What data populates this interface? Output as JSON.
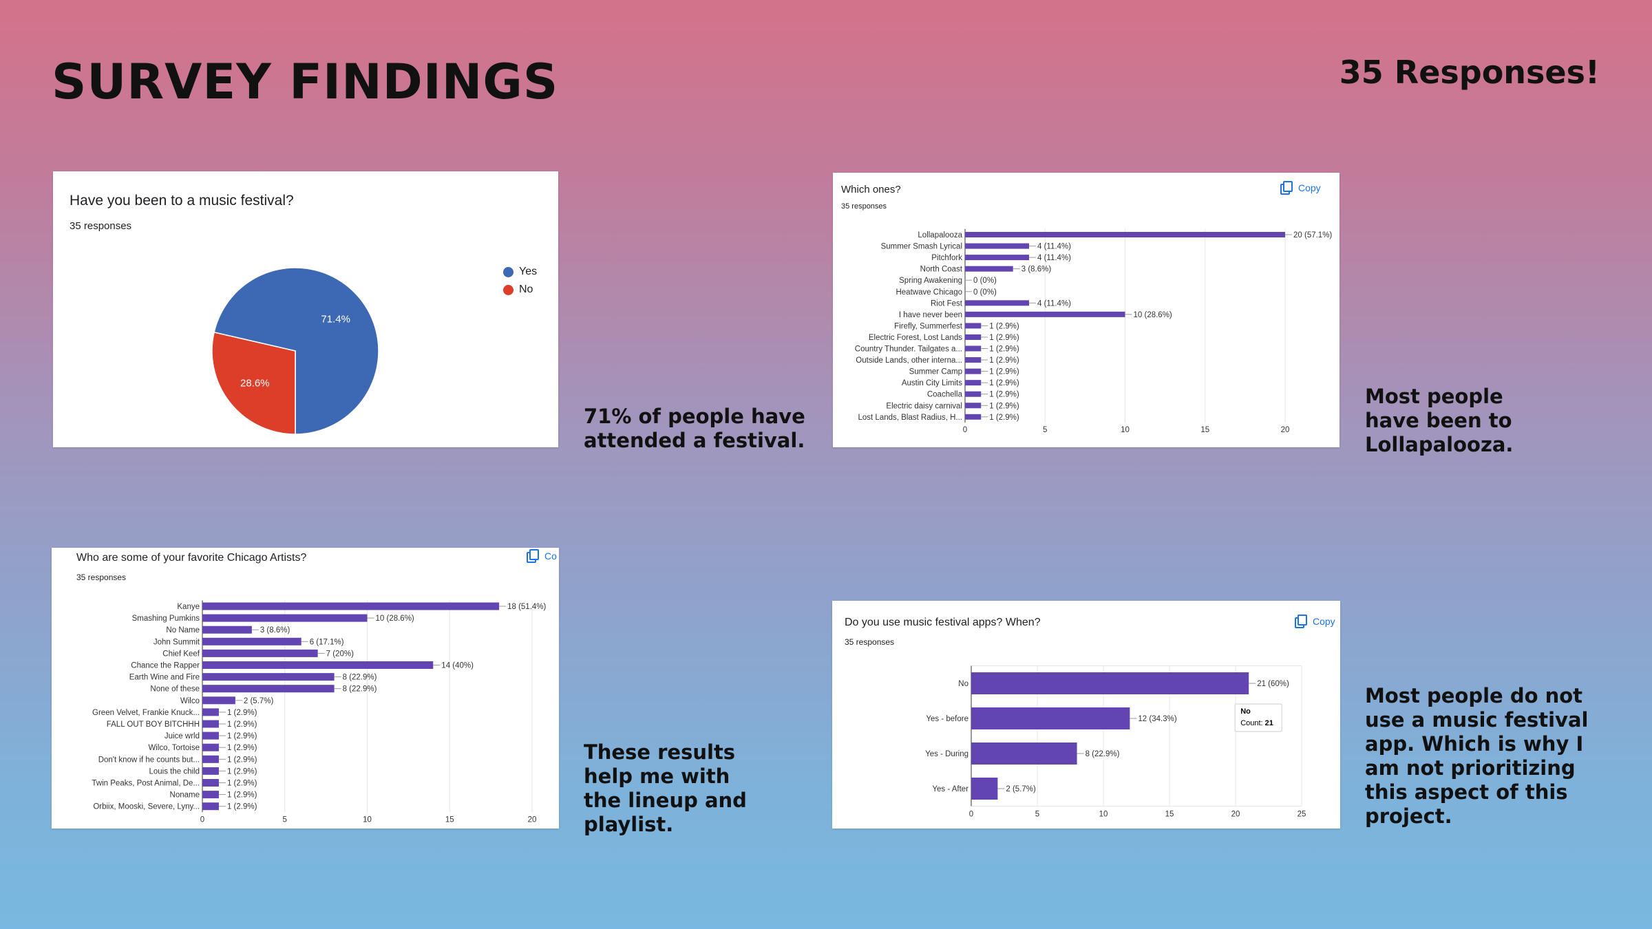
{
  "page": {
    "title": "SURVEY FINDINGS",
    "responses_badge": "35 Responses!"
  },
  "copy_label": "Copy",
  "copy_label_clipped": "Co",
  "notes": {
    "festival": "71% of people have\nattended a festival.",
    "which": "Most people\nhave been to\nLollapalooza.",
    "artists": "These results\nhelp me with\nthe lineup and\nplaylist.",
    "apps": "Most people do not\nuse a music festival\napp. Which is why I\nam not prioritizing\nthis aspect of this\nproject."
  },
  "colors": {
    "blue": "#3d68b4",
    "red": "#dc3e2a",
    "purple": "#6245b1",
    "grid": "#e6e6e6",
    "axis": "#333333"
  },
  "chart_data": [
    {
      "id": "festival",
      "type": "pie",
      "title": "Have you been to a music festival?",
      "subtitle": "35 responses",
      "labels": [
        "Yes",
        "No"
      ],
      "values": [
        71.4,
        28.6
      ],
      "value_labels": [
        "71.4%",
        "28.6%"
      ],
      "colors": [
        "#3d68b4",
        "#dc3e2a"
      ],
      "legend": "right"
    },
    {
      "id": "which",
      "type": "bar",
      "orientation": "horizontal",
      "title": "Which ones?",
      "subtitle": "35 responses",
      "categories": [
        "Lollapalooza",
        "Summer Smash Lyrical",
        "Pitchfork",
        "North Coast",
        "Spring Awakening",
        "Heatwave Chicago",
        "Riot Fest",
        "I have never been",
        "Firefly, Summerfest",
        "Electric Forest, Lost Lands",
        "Country Thunder. Tailgates a...",
        "Outside Lands, other interna...",
        "Summer Camp",
        "Austin City Limits",
        "Coachella",
        "Electric daisy carnival",
        "Lost Lands, Blast Radius, H..."
      ],
      "values": [
        20,
        4,
        4,
        3,
        0,
        0,
        4,
        10,
        1,
        1,
        1,
        1,
        1,
        1,
        1,
        1,
        1
      ],
      "value_labels": [
        "20 (57.1%)",
        "4 (11.4%)",
        "4 (11.4%)",
        "3 (8.6%)",
        "0 (0%)",
        "0 (0%)",
        "4 (11.4%)",
        "10 (28.6%)",
        "1 (2.9%)",
        "1 (2.9%)",
        "1 (2.9%)",
        "1 (2.9%)",
        "1 (2.9%)",
        "1 (2.9%)",
        "1 (2.9%)",
        "1 (2.9%)",
        "1 (2.9%)"
      ],
      "xlim": [
        0,
        20
      ],
      "ticks": [
        0,
        5,
        10,
        15,
        20
      ],
      "tick_labels": [
        "0",
        "5",
        "10",
        "15",
        "20"
      ],
      "grid": true
    },
    {
      "id": "artists",
      "type": "bar",
      "orientation": "horizontal",
      "title": "Who are some of your favorite Chicago Artists?",
      "subtitle": "35 responses",
      "categories": [
        "Kanye",
        "Smashing Pumkins",
        "No Name",
        "John Summit",
        "Chief Keef",
        "Chance the Rapper",
        "Earth Wine and Fire",
        "None of these",
        "Wilco",
        "Green Velvet, Frankie Knuck...",
        "FALL OUT BOY BITCHHH",
        "Juice wrld",
        "Wilco, Tortoise",
        "Don't know if he counts but...",
        "Louis the child",
        "Twin Peaks, Post Animal, De...",
        "Noname",
        "Orbiix, Mooski, Severe, Lyny..."
      ],
      "values": [
        18,
        10,
        3,
        6,
        7,
        14,
        8,
        8,
        2,
        1,
        1,
        1,
        1,
        1,
        1,
        1,
        1,
        1
      ],
      "value_labels": [
        "18 (51.4%)",
        "10 (28.6%)",
        "3 (8.6%)",
        "6 (17.1%)",
        "7 (20%)",
        "14 (40%)",
        "8 (22.9%)",
        "8 (22.9%)",
        "2 (5.7%)",
        "1 (2.9%)",
        "1 (2.9%)",
        "1 (2.9%)",
        "1 (2.9%)",
        "1 (2.9%)",
        "1 (2.9%)",
        "1 (2.9%)",
        "1 (2.9%)",
        "1 (2.9%)"
      ],
      "xlim": [
        0,
        20
      ],
      "ticks": [
        0,
        5,
        10,
        15,
        20
      ],
      "tick_labels": [
        "0",
        "5",
        "10",
        "15",
        "20"
      ],
      "grid": true
    },
    {
      "id": "apps",
      "type": "bar",
      "orientation": "horizontal",
      "title": "Do you use music festival apps? When?",
      "subtitle": "35 responses",
      "categories": [
        "No",
        "Yes - before",
        "Yes - During",
        "Yes - After"
      ],
      "values": [
        21,
        12,
        8,
        2
      ],
      "value_labels": [
        "21 (60%)",
        "12 (34.3%)",
        "8 (22.9%)",
        "2 (5.7%)"
      ],
      "xlim": [
        0,
        25
      ],
      "ticks": [
        0,
        5,
        10,
        15,
        20,
        25
      ],
      "tick_labels": [
        "0",
        "5",
        "10",
        "15",
        "20",
        "25"
      ],
      "grid": true,
      "tooltip": {
        "title": "No",
        "label": "Count:",
        "value": "21"
      }
    }
  ]
}
